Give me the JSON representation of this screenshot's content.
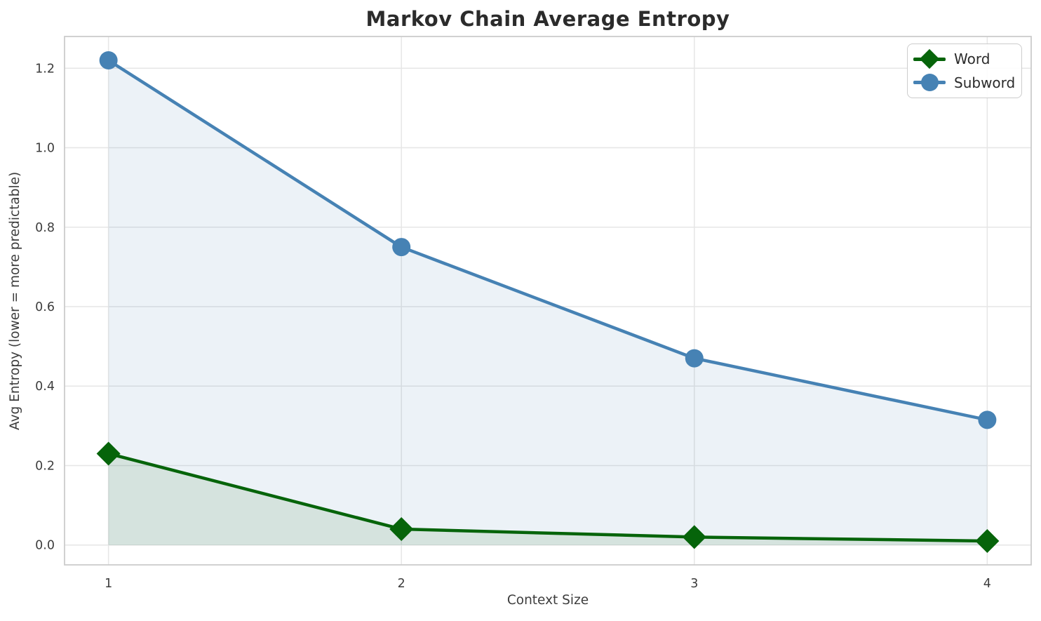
{
  "title": "Markov Chain Average Entropy",
  "chart_data": {
    "type": "line",
    "title": "Markov Chain Average Entropy",
    "xlabel": "Context Size",
    "ylabel": "Avg Entropy (lower = more predictable)",
    "x": [
      1,
      2,
      3,
      4
    ],
    "series": [
      {
        "name": "Word",
        "marker": "diamond",
        "color": "#06640a",
        "values": [
          0.23,
          0.04,
          0.02,
          0.01
        ]
      },
      {
        "name": "Subword",
        "marker": "circle",
        "color": "#4682b4",
        "values": [
          1.22,
          0.75,
          0.47,
          0.315
        ]
      }
    ],
    "x_tick_values": [
      1,
      2,
      3,
      4
    ],
    "x_tick_labels": [
      "1",
      "2",
      "3",
      "4"
    ],
    "y_tick_values": [
      0.0,
      0.2,
      0.4,
      0.6,
      0.8,
      1.0,
      1.2
    ],
    "y_tick_labels": [
      "0.0",
      "0.2",
      "0.4",
      "0.6",
      "0.8",
      "1.0",
      "1.2"
    ],
    "xlim": [
      0.85,
      4.15
    ],
    "ylim": [
      -0.05,
      1.28
    ],
    "grid": true,
    "area_fill": true,
    "area_fill_opacity": 0.1,
    "legend_position": "upper right",
    "grid_color": "#e6e6e6",
    "spine_color": "#cccccc",
    "tick_color": "#3d3d3d",
    "title_color": "#2b2b2b"
  }
}
